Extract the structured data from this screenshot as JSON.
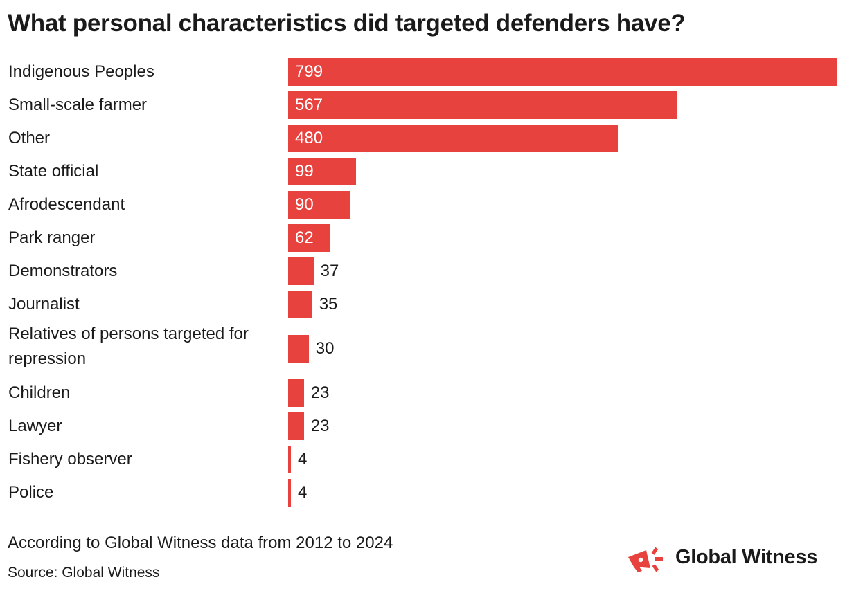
{
  "title": "What personal characteristics did targeted defenders have?",
  "subtitle": "According to Global Witness data from 2012 to 2024",
  "source": "Source: Global Witness",
  "brand": {
    "name": "Global Witness",
    "icon": "megaphone-icon"
  },
  "colors": {
    "bar": "#E8423F",
    "text": "#1a1a1a",
    "inside_label": "#ffffff"
  },
  "chart_data": {
    "type": "bar",
    "orientation": "horizontal",
    "title": "What personal characteristics did targeted defenders have?",
    "categories": [
      "Indigenous Peoples",
      "Small-scale farmer",
      "Other",
      "State official",
      "Afrodescendant",
      "Park ranger",
      "Demonstrators",
      "Journalist",
      "Relatives of persons targeted for repression",
      "Children",
      "Lawyer",
      "Fishery observer",
      "Police"
    ],
    "values": [
      799,
      567,
      480,
      99,
      90,
      62,
      37,
      35,
      30,
      23,
      23,
      4,
      4
    ],
    "xlim": [
      0,
      799
    ],
    "xlabel": "",
    "ylabel": "",
    "grid": false,
    "legend": "none"
  }
}
